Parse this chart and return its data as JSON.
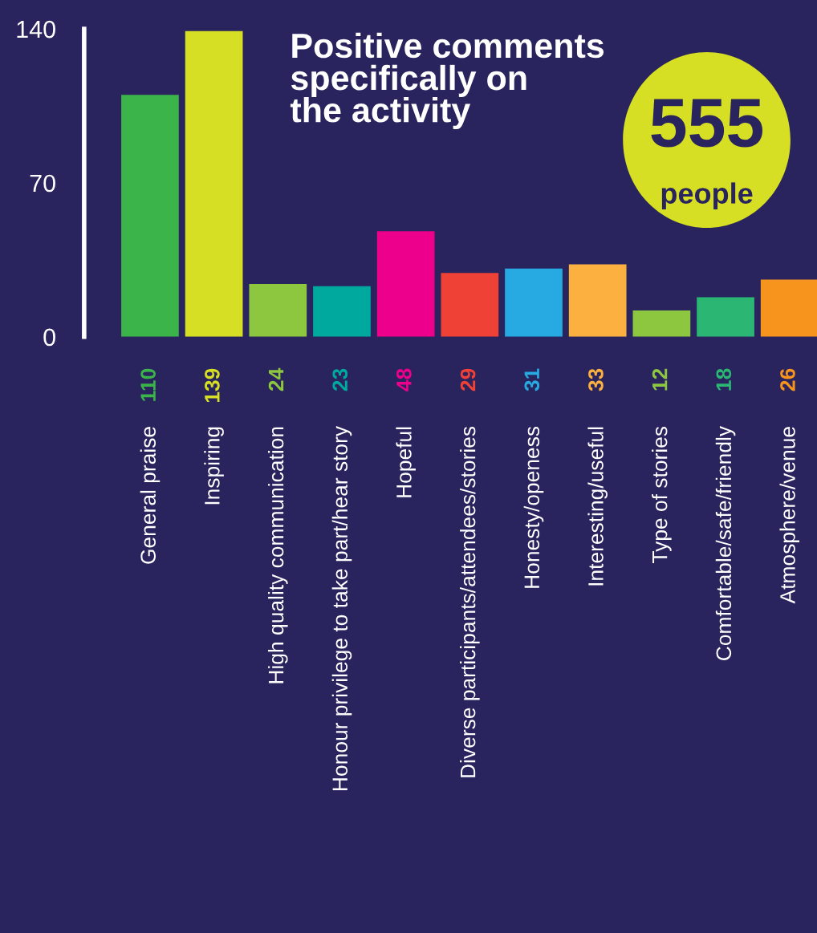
{
  "chart_data": {
    "type": "bar",
    "title": "Positive comments\nspecifically on\nthe activity",
    "categories": [
      "General praise",
      "Inspiring",
      "High quality communication",
      "Honour privilege to take part/hear story",
      "Hopeful",
      "Diverse participants/attendees/stories",
      "Honesty/openess",
      "Interesting/useful",
      "Type of stories",
      "Comfortable/safe/friendly",
      "Atmosphere/venue"
    ],
    "values": [
      110,
      139,
      24,
      23,
      48,
      29,
      31,
      33,
      12,
      18,
      26
    ],
    "colors": [
      "#3bb54a",
      "#d6df23",
      "#8dc63f",
      "#00a99d",
      "#ec008c",
      "#ef4136",
      "#27aae1",
      "#fbb040",
      "#8dc63f",
      "#2bb673",
      "#f7941d"
    ],
    "ylim": [
      0,
      140
    ],
    "yticks": [
      0,
      70,
      140
    ],
    "data_labels": true,
    "grid": false,
    "legend": false,
    "annotations": [
      "555",
      "people"
    ]
  }
}
